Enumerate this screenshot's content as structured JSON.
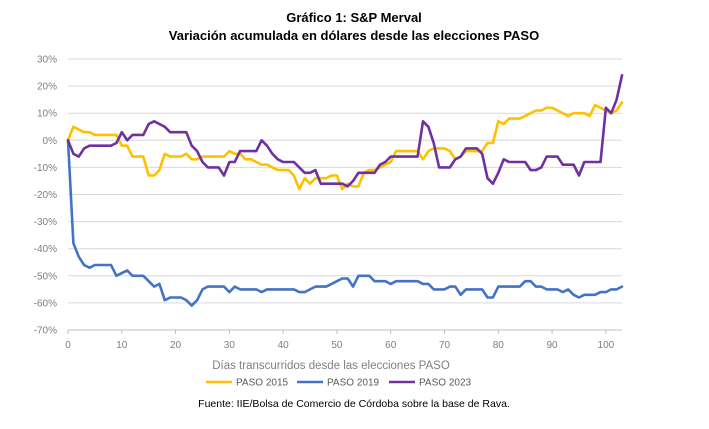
{
  "chart_data": {
    "type": "line",
    "title": "Gráfico 1: S&P Merval",
    "subtitle": "Variación acumulada en dólares desde las elecciones PASO",
    "xlabel": "Días transcurridos desde las elecciones PASO",
    "ylabel": "",
    "xlim": [
      0,
      103
    ],
    "ylim": [
      -70,
      30
    ],
    "x_ticks": [
      0,
      10,
      20,
      30,
      40,
      50,
      60,
      70,
      80,
      90,
      100
    ],
    "y_ticks": [
      "30%",
      "20%",
      "10%",
      "0%",
      "-10%",
      "-20%",
      "-30%",
      "-40%",
      "-50%",
      "-60%",
      "-70%"
    ],
    "y_tick_values": [
      30,
      20,
      10,
      0,
      -10,
      -20,
      -30,
      -40,
      -50,
      -60,
      -70
    ],
    "grid": "horizontal",
    "legend_position": "bottom",
    "source": "Fuente: IIE/Bolsa de Comercio de Córdoba sobre la base de Rava.",
    "series": [
      {
        "name": "PASO 2015",
        "color": "#FFC000",
        "points": [
          [
            0,
            0
          ],
          [
            1,
            5
          ],
          [
            2,
            4
          ],
          [
            3,
            3
          ],
          [
            4,
            3
          ],
          [
            5,
            2
          ],
          [
            6,
            2
          ],
          [
            7,
            2
          ],
          [
            8,
            2
          ],
          [
            9,
            2
          ],
          [
            10,
            -2
          ],
          [
            11,
            -2
          ],
          [
            12,
            -6
          ],
          [
            13,
            -6
          ],
          [
            14,
            -6
          ],
          [
            15,
            -13
          ],
          [
            16,
            -13
          ],
          [
            17,
            -11
          ],
          [
            18,
            -5
          ],
          [
            19,
            -6
          ],
          [
            20,
            -6
          ],
          [
            21,
            -6
          ],
          [
            22,
            -5
          ],
          [
            23,
            -7
          ],
          [
            24,
            -7
          ],
          [
            25,
            -6
          ],
          [
            26,
            -6
          ],
          [
            27,
            -6
          ],
          [
            28,
            -6
          ],
          [
            29,
            -6
          ],
          [
            30,
            -4
          ],
          [
            31,
            -5
          ],
          [
            32,
            -5
          ],
          [
            33,
            -7
          ],
          [
            34,
            -7
          ],
          [
            35,
            -8
          ],
          [
            36,
            -9
          ],
          [
            37,
            -9
          ],
          [
            38,
            -10
          ],
          [
            39,
            -11
          ],
          [
            40,
            -11
          ],
          [
            41,
            -11
          ],
          [
            42,
            -13
          ],
          [
            43,
            -18
          ],
          [
            44,
            -14
          ],
          [
            45,
            -16
          ],
          [
            46,
            -14
          ],
          [
            47,
            -14
          ],
          [
            48,
            -14
          ],
          [
            49,
            -13
          ],
          [
            50,
            -13
          ],
          [
            51,
            -18
          ],
          [
            52,
            -16
          ],
          [
            53,
            -17
          ],
          [
            54,
            -17
          ],
          [
            55,
            -12
          ],
          [
            56,
            -11
          ],
          [
            57,
            -11
          ],
          [
            58,
            -10
          ],
          [
            59,
            -9
          ],
          [
            60,
            -8
          ],
          [
            61,
            -4
          ],
          [
            62,
            -4
          ],
          [
            63,
            -4
          ],
          [
            64,
            -4
          ],
          [
            65,
            -4
          ],
          [
            66,
            -7
          ],
          [
            67,
            -4
          ],
          [
            68,
            -3
          ],
          [
            69,
            -3
          ],
          [
            70,
            -3
          ],
          [
            71,
            -4
          ],
          [
            72,
            -7
          ],
          [
            73,
            -6
          ],
          [
            74,
            -4
          ],
          [
            75,
            -4
          ],
          [
            76,
            -4
          ],
          [
            77,
            -4
          ],
          [
            78,
            -1
          ],
          [
            79,
            -1
          ],
          [
            80,
            7
          ],
          [
            81,
            6
          ],
          [
            82,
            8
          ],
          [
            83,
            8
          ],
          [
            84,
            8
          ],
          [
            85,
            9
          ],
          [
            86,
            10
          ],
          [
            87,
            11
          ],
          [
            88,
            11
          ],
          [
            89,
            12
          ],
          [
            90,
            12
          ],
          [
            91,
            11
          ],
          [
            92,
            10
          ],
          [
            93,
            9
          ],
          [
            94,
            10
          ],
          [
            95,
            10
          ],
          [
            96,
            10
          ],
          [
            97,
            9
          ],
          [
            98,
            13
          ],
          [
            99,
            12
          ],
          [
            100,
            11
          ],
          [
            101,
            10
          ],
          [
            102,
            11
          ],
          [
            103,
            14
          ]
        ]
      },
      {
        "name": "PASO 2019",
        "color": "#4472C4",
        "points": [
          [
            0,
            0
          ],
          [
            1,
            -38
          ],
          [
            2,
            -43
          ],
          [
            3,
            -46
          ],
          [
            4,
            -47
          ],
          [
            5,
            -46
          ],
          [
            6,
            -46
          ],
          [
            7,
            -46
          ],
          [
            8,
            -46
          ],
          [
            9,
            -50
          ],
          [
            10,
            -49
          ],
          [
            11,
            -48
          ],
          [
            12,
            -50
          ],
          [
            13,
            -50
          ],
          [
            14,
            -50
          ],
          [
            15,
            -52
          ],
          [
            16,
            -54
          ],
          [
            17,
            -53
          ],
          [
            18,
            -59
          ],
          [
            19,
            -58
          ],
          [
            20,
            -58
          ],
          [
            21,
            -58
          ],
          [
            22,
            -59
          ],
          [
            23,
            -61
          ],
          [
            24,
            -59
          ],
          [
            25,
            -55
          ],
          [
            26,
            -54
          ],
          [
            27,
            -54
          ],
          [
            28,
            -54
          ],
          [
            29,
            -54
          ],
          [
            30,
            -56
          ],
          [
            31,
            -54
          ],
          [
            32,
            -55
          ],
          [
            33,
            -55
          ],
          [
            34,
            -55
          ],
          [
            35,
            -55
          ],
          [
            36,
            -56
          ],
          [
            37,
            -55
          ],
          [
            38,
            -55
          ],
          [
            39,
            -55
          ],
          [
            40,
            -55
          ],
          [
            41,
            -55
          ],
          [
            42,
            -55
          ],
          [
            43,
            -56
          ],
          [
            44,
            -56
          ],
          [
            45,
            -55
          ],
          [
            46,
            -54
          ],
          [
            47,
            -54
          ],
          [
            48,
            -54
          ],
          [
            49,
            -53
          ],
          [
            50,
            -52
          ],
          [
            51,
            -51
          ],
          [
            52,
            -51
          ],
          [
            53,
            -54
          ],
          [
            54,
            -50
          ],
          [
            55,
            -50
          ],
          [
            56,
            -50
          ],
          [
            57,
            -52
          ],
          [
            58,
            -52
          ],
          [
            59,
            -52
          ],
          [
            60,
            -53
          ],
          [
            61,
            -52
          ],
          [
            62,
            -52
          ],
          [
            63,
            -52
          ],
          [
            64,
            -52
          ],
          [
            65,
            -52
          ],
          [
            66,
            -53
          ],
          [
            67,
            -53
          ],
          [
            68,
            -55
          ],
          [
            69,
            -55
          ],
          [
            70,
            -55
          ],
          [
            71,
            -54
          ],
          [
            72,
            -54
          ],
          [
            73,
            -57
          ],
          [
            74,
            -55
          ],
          [
            75,
            -55
          ],
          [
            76,
            -55
          ],
          [
            77,
            -55
          ],
          [
            78,
            -58
          ],
          [
            79,
            -58
          ],
          [
            80,
            -54
          ],
          [
            81,
            -54
          ],
          [
            82,
            -54
          ],
          [
            83,
            -54
          ],
          [
            84,
            -54
          ],
          [
            85,
            -52
          ],
          [
            86,
            -52
          ],
          [
            87,
            -54
          ],
          [
            88,
            -54
          ],
          [
            89,
            -55
          ],
          [
            90,
            -55
          ],
          [
            91,
            -55
          ],
          [
            92,
            -56
          ],
          [
            93,
            -55
          ],
          [
            94,
            -57
          ],
          [
            95,
            -58
          ],
          [
            96,
            -57
          ],
          [
            97,
            -57
          ],
          [
            98,
            -57
          ],
          [
            99,
            -56
          ],
          [
            100,
            -56
          ],
          [
            101,
            -55
          ],
          [
            102,
            -55
          ],
          [
            103,
            -54
          ]
        ]
      },
      {
        "name": "PASO 2023",
        "color": "#7030A0",
        "points": [
          [
            0,
            0
          ],
          [
            1,
            -5
          ],
          [
            2,
            -6
          ],
          [
            3,
            -3
          ],
          [
            4,
            -2
          ],
          [
            5,
            -2
          ],
          [
            6,
            -2
          ],
          [
            7,
            -2
          ],
          [
            8,
            -2
          ],
          [
            9,
            -1
          ],
          [
            10,
            3
          ],
          [
            11,
            0
          ],
          [
            12,
            2
          ],
          [
            13,
            2
          ],
          [
            14,
            2
          ],
          [
            15,
            6
          ],
          [
            16,
            7
          ],
          [
            17,
            6
          ],
          [
            18,
            5
          ],
          [
            19,
            3
          ],
          [
            20,
            3
          ],
          [
            21,
            3
          ],
          [
            22,
            3
          ],
          [
            23,
            -2
          ],
          [
            24,
            -4
          ],
          [
            25,
            -8
          ],
          [
            26,
            -10
          ],
          [
            27,
            -10
          ],
          [
            28,
            -10
          ],
          [
            29,
            -13
          ],
          [
            30,
            -8
          ],
          [
            31,
            -8
          ],
          [
            32,
            -4
          ],
          [
            33,
            -4
          ],
          [
            34,
            -4
          ],
          [
            35,
            -4
          ],
          [
            36,
            0
          ],
          [
            37,
            -2
          ],
          [
            38,
            -5
          ],
          [
            39,
            -7
          ],
          [
            40,
            -8
          ],
          [
            41,
            -8
          ],
          [
            42,
            -8
          ],
          [
            43,
            -10
          ],
          [
            44,
            -12
          ],
          [
            45,
            -12
          ],
          [
            46,
            -11
          ],
          [
            47,
            -16
          ],
          [
            48,
            -16
          ],
          [
            49,
            -16
          ],
          [
            50,
            -16
          ],
          [
            51,
            -16
          ],
          [
            52,
            -17
          ],
          [
            53,
            -15
          ],
          [
            54,
            -12
          ],
          [
            55,
            -12
          ],
          [
            56,
            -12
          ],
          [
            57,
            -12
          ],
          [
            58,
            -9
          ],
          [
            59,
            -8
          ],
          [
            60,
            -6
          ],
          [
            61,
            -6
          ],
          [
            62,
            -6
          ],
          [
            63,
            -6
          ],
          [
            64,
            -6
          ],
          [
            65,
            -6
          ],
          [
            66,
            7
          ],
          [
            67,
            5
          ],
          [
            68,
            -1
          ],
          [
            69,
            -10
          ],
          [
            70,
            -10
          ],
          [
            71,
            -10
          ],
          [
            72,
            -7
          ],
          [
            73,
            -6
          ],
          [
            74,
            -3
          ],
          [
            75,
            -3
          ],
          [
            76,
            -3
          ],
          [
            77,
            -5
          ],
          [
            78,
            -14
          ],
          [
            79,
            -16
          ],
          [
            80,
            -12
          ],
          [
            81,
            -7
          ],
          [
            82,
            -8
          ],
          [
            83,
            -8
          ],
          [
            84,
            -8
          ],
          [
            85,
            -8
          ],
          [
            86,
            -11
          ],
          [
            87,
            -11
          ],
          [
            88,
            -10
          ],
          [
            89,
            -6
          ],
          [
            90,
            -6
          ],
          [
            91,
            -6
          ],
          [
            92,
            -9
          ],
          [
            93,
            -9
          ],
          [
            94,
            -9
          ],
          [
            95,
            -13
          ],
          [
            96,
            -8
          ],
          [
            97,
            -8
          ],
          [
            98,
            -8
          ],
          [
            99,
            -8
          ],
          [
            100,
            12
          ],
          [
            101,
            10
          ],
          [
            102,
            15
          ],
          [
            103,
            24
          ]
        ]
      }
    ]
  }
}
